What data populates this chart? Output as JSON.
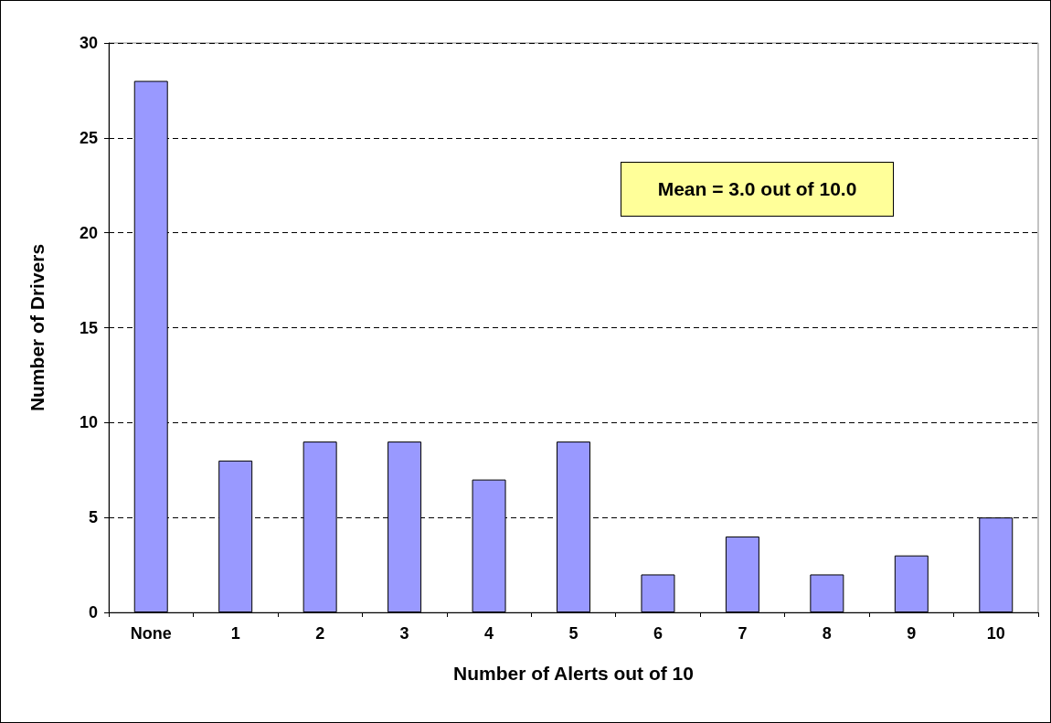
{
  "chart_data": {
    "type": "bar",
    "xlabel": "Number of Alerts out of 10",
    "ylabel": "Number of Drivers",
    "categories": [
      "None",
      "1",
      "2",
      "3",
      "4",
      "5",
      "6",
      "7",
      "8",
      "9",
      "10"
    ],
    "values": [
      28,
      8,
      9,
      9,
      7,
      9,
      2,
      4,
      2,
      3,
      5
    ],
    "color": "#9999ff",
    "ylim": [
      0,
      30
    ],
    "yticks": [
      0,
      5,
      10,
      15,
      20,
      25,
      30
    ],
    "grid": "y",
    "annotations": [
      "Mean = 3.0 out of 10.0"
    ]
  }
}
